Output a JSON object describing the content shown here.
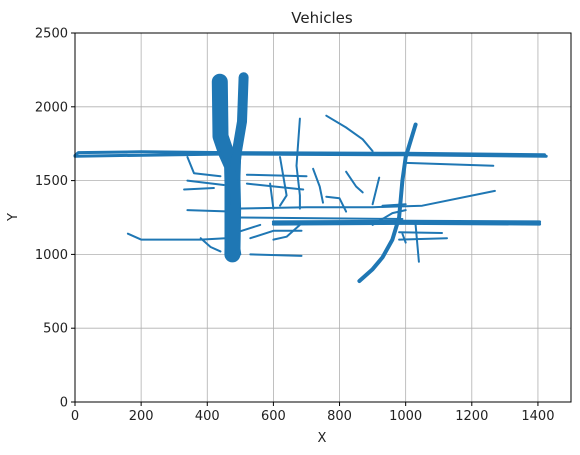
{
  "chart_data": {
    "type": "scatter",
    "title": "Vehicles",
    "xlabel": "X",
    "ylabel": "Y",
    "xlim": [
      0,
      1500
    ],
    "ylim": [
      0,
      2500
    ],
    "xticks": [
      "0",
      "200",
      "400",
      "600",
      "800",
      "1000",
      "1200",
      "1400"
    ],
    "yticks": [
      "0",
      "500",
      "1000",
      "1500",
      "2000",
      "2500"
    ],
    "grid": true,
    "series_color": "#1f77b4",
    "traces": [
      {
        "width": 3,
        "points": [
          [
            0,
            1670
          ],
          [
            10,
            1690
          ],
          [
            200,
            1695
          ],
          [
            460,
            1690
          ],
          [
            1000,
            1685
          ],
          [
            1420,
            1675
          ]
        ]
      },
      {
        "width": 3,
        "points": [
          [
            0,
            1665
          ],
          [
            460,
            1680
          ],
          [
            1000,
            1675
          ],
          [
            1425,
            1665
          ]
        ]
      },
      {
        "width": 2,
        "points": [
          [
            1000,
            1620
          ],
          [
            1265,
            1600
          ]
        ]
      },
      {
        "width": 3,
        "points": [
          [
            600,
            1220
          ],
          [
            1000,
            1225
          ],
          [
            1405,
            1220
          ]
        ]
      },
      {
        "width": 3,
        "points": [
          [
            600,
            1205
          ],
          [
            1000,
            1210
          ],
          [
            1405,
            1205
          ]
        ]
      },
      {
        "width": 2,
        "points": [
          [
            480,
            1310
          ],
          [
            700,
            1320
          ],
          [
            900,
            1320
          ],
          [
            1050,
            1330
          ],
          [
            1270,
            1430
          ]
        ]
      },
      {
        "width": 2,
        "points": [
          [
            340,
            1300
          ],
          [
            480,
            1290
          ]
        ]
      },
      {
        "width": 2,
        "points": [
          [
            490,
            1250
          ],
          [
            990,
            1240
          ]
        ]
      },
      {
        "width": 2,
        "points": [
          [
            160,
            1140
          ],
          [
            200,
            1100
          ],
          [
            380,
            1100
          ],
          [
            455,
            1110
          ]
        ]
      },
      {
        "width": 2,
        "points": [
          [
            380,
            1110
          ],
          [
            410,
            1050
          ],
          [
            440,
            1020
          ]
        ]
      },
      {
        "width": 2,
        "points": [
          [
            530,
            1000
          ],
          [
            685,
            990
          ]
        ]
      },
      {
        "width": 2,
        "points": [
          [
            530,
            1110
          ],
          [
            600,
            1160
          ],
          [
            685,
            1160
          ]
        ]
      },
      {
        "width": 2,
        "points": [
          [
            980,
            1150
          ],
          [
            1110,
            1145
          ]
        ]
      },
      {
        "width": 2,
        "points": [
          [
            980,
            1100
          ],
          [
            1125,
            1110
          ]
        ]
      },
      {
        "width": 2,
        "points": [
          [
            340,
            1660
          ],
          [
            360,
            1550
          ],
          [
            440,
            1530
          ]
        ]
      },
      {
        "width": 2,
        "points": [
          [
            340,
            1500
          ],
          [
            450,
            1470
          ]
        ]
      },
      {
        "width": 2,
        "points": [
          [
            330,
            1440
          ],
          [
            420,
            1450
          ]
        ]
      },
      {
        "width": 2,
        "points": [
          [
            520,
            1540
          ],
          [
            700,
            1530
          ]
        ]
      },
      {
        "width": 2,
        "points": [
          [
            520,
            1480
          ],
          [
            690,
            1440
          ]
        ]
      },
      {
        "width": 2,
        "points": [
          [
            590,
            1480
          ],
          [
            600,
            1310
          ]
        ]
      },
      {
        "width": 2,
        "points": [
          [
            680,
            1920
          ],
          [
            670,
            1600
          ],
          [
            680,
            1400
          ],
          [
            680,
            1310
          ]
        ]
      },
      {
        "width": 2,
        "points": [
          [
            620,
            1660
          ],
          [
            640,
            1400
          ],
          [
            620,
            1330
          ]
        ]
      },
      {
        "width": 2,
        "points": [
          [
            680,
            1200
          ],
          [
            640,
            1120
          ],
          [
            600,
            1100
          ]
        ]
      },
      {
        "width": 2,
        "points": [
          [
            720,
            1580
          ],
          [
            740,
            1460
          ],
          [
            750,
            1350
          ]
        ]
      },
      {
        "width": 2,
        "points": [
          [
            760,
            1940
          ],
          [
            820,
            1860
          ],
          [
            870,
            1780
          ],
          [
            900,
            1700
          ]
        ]
      },
      {
        "width": 2,
        "points": [
          [
            760,
            1390
          ],
          [
            800,
            1380
          ],
          [
            820,
            1290
          ]
        ]
      },
      {
        "width": 2,
        "points": [
          [
            820,
            1560
          ],
          [
            850,
            1460
          ],
          [
            870,
            1420
          ]
        ]
      },
      {
        "width": 2,
        "points": [
          [
            900,
            1340
          ],
          [
            920,
            1520
          ]
        ]
      },
      {
        "width": 2,
        "points": [
          [
            930,
            1330
          ],
          [
            1000,
            1340
          ]
        ]
      },
      {
        "width": 4,
        "points": [
          [
            860,
            820
          ],
          [
            900,
            900
          ],
          [
            930,
            980
          ],
          [
            960,
            1100
          ],
          [
            980,
            1250
          ],
          [
            990,
            1500
          ],
          [
            1000,
            1660
          ],
          [
            1030,
            1880
          ]
        ]
      },
      {
        "width": 2,
        "points": [
          [
            900,
            1200
          ],
          [
            960,
            1280
          ],
          [
            1000,
            1300
          ]
        ]
      },
      {
        "width": 2,
        "points": [
          [
            990,
            1140
          ],
          [
            1000,
            1080
          ]
        ]
      },
      {
        "width": 2,
        "points": [
          [
            1030,
            1200
          ],
          [
            1040,
            950
          ]
        ]
      },
      {
        "width": 2,
        "points": [
          [
            455,
            2180
          ],
          [
            455,
            1000
          ]
        ]
      },
      {
        "width": 2,
        "points": [
          [
            510,
            2200
          ],
          [
            500,
            1700
          ],
          [
            490,
            1000
          ]
        ]
      },
      {
        "width": 2,
        "points": [
          [
            500,
            1000
          ],
          [
            490,
            1150
          ],
          [
            560,
            1200
          ]
        ]
      }
    ],
    "bands": [
      {
        "width": 16,
        "points": [
          [
            438,
            2170
          ],
          [
            440,
            1800
          ],
          [
            455,
            1700
          ],
          [
            475,
            1600
          ],
          [
            478,
            1300
          ],
          [
            476,
            1000
          ]
        ]
      },
      {
        "width": 10,
        "points": [
          [
            510,
            2200
          ],
          [
            505,
            1900
          ],
          [
            490,
            1700
          ],
          [
            480,
            1500
          ]
        ]
      },
      {
        "width": 12,
        "points": [
          [
            440,
            2170
          ],
          [
            445,
            1800
          ],
          [
            460,
            1690
          ]
        ]
      },
      {
        "width": 10,
        "points": [
          [
            470,
            1560
          ],
          [
            485,
            1400
          ],
          [
            480,
            1100
          ],
          [
            470,
            1020
          ]
        ]
      }
    ]
  }
}
